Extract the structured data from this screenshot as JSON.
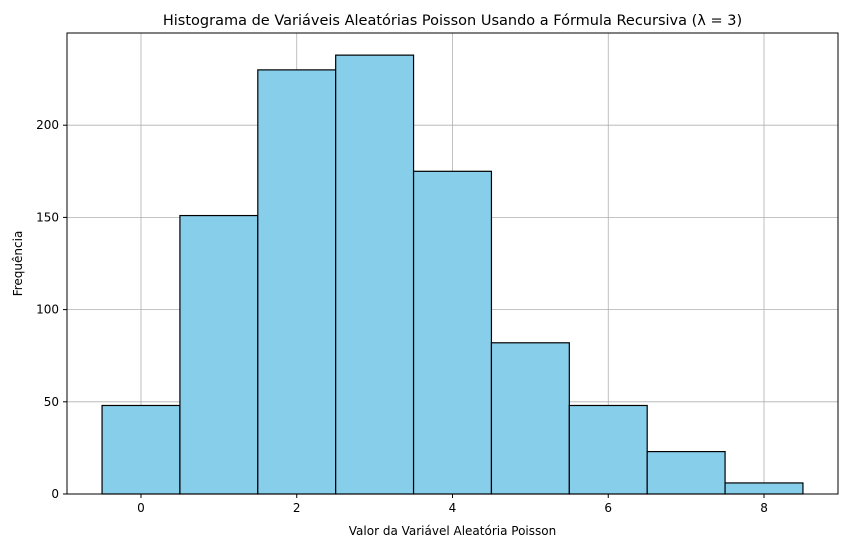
{
  "chart_data": {
    "type": "bar",
    "title": "Histograma de Variáveis Aleatórias Poisson Usando a Fórmula Recursiva (λ = 3)",
    "xlabel": "Valor da Variável Aleatória Poisson",
    "ylabel": "Frequência",
    "bins": [
      {
        "from": -0.5,
        "to": 0.5,
        "value": 48
      },
      {
        "from": 0.5,
        "to": 1.5,
        "value": 151
      },
      {
        "from": 1.5,
        "to": 2.5,
        "value": 230
      },
      {
        "from": 2.5,
        "to": 3.5,
        "value": 238
      },
      {
        "from": 3.5,
        "to": 4.5,
        "value": 175
      },
      {
        "from": 4.5,
        "to": 5.5,
        "value": 82
      },
      {
        "from": 5.5,
        "to": 6.5,
        "value": 48
      },
      {
        "from": 6.5,
        "to": 7.5,
        "value": 23
      },
      {
        "from": 7.5,
        "to": 8.5,
        "value": 6
      }
    ],
    "xlim": [
      -0.95,
      8.95
    ],
    "ylim": [
      0,
      250
    ],
    "xticks": [
      0,
      2,
      4,
      6,
      8
    ],
    "yticks": [
      0,
      50,
      100,
      150,
      200
    ],
    "grid": true,
    "colors": {
      "bar_fill": "#87ceeb",
      "bar_edge": "#000000",
      "grid": "#b0b0b0"
    }
  }
}
